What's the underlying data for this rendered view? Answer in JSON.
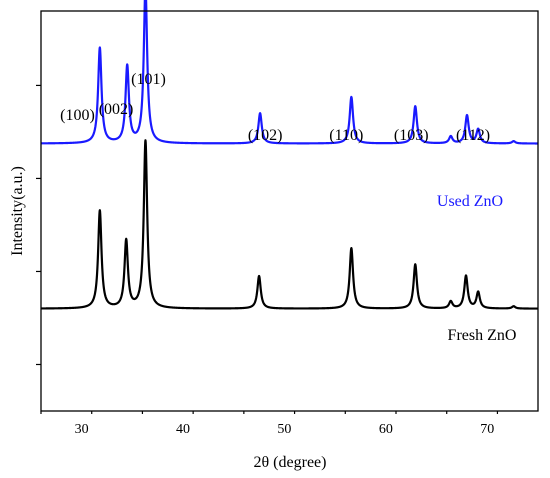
{
  "chart_data": {
    "type": "line",
    "title": "",
    "xlabel": "2θ (degree)",
    "ylabel": "Intensity(a.u.)",
    "xlim": [
      26,
      75
    ],
    "ylim": [
      0,
      1.72
    ],
    "xticks": [
      30,
      40,
      50,
      60,
      70
    ],
    "y_ticks_labeled": false,
    "grid": false,
    "legend": "none",
    "series": [
      {
        "name": "Used ZnO",
        "color": "#1a1aff",
        "baseline": 1.15,
        "peaks": [
          {
            "x": 31.8,
            "height": 0.41
          },
          {
            "x": 34.5,
            "height": 0.33
          },
          {
            "x": 36.3,
            "height": 0.67
          },
          {
            "x": 47.6,
            "height": 0.13
          },
          {
            "x": 56.6,
            "height": 0.2
          },
          {
            "x": 62.9,
            "height": 0.16
          },
          {
            "x": 66.4,
            "height": 0.03
          },
          {
            "x": 68.0,
            "height": 0.12
          },
          {
            "x": 69.1,
            "height": 0.06
          },
          {
            "x": 72.6,
            "height": 0.01
          }
        ]
      },
      {
        "name": "Fresh ZnO",
        "color": "#000000",
        "baseline": 0.44,
        "peaks": [
          {
            "x": 31.8,
            "height": 0.42
          },
          {
            "x": 34.4,
            "height": 0.29
          },
          {
            "x": 36.3,
            "height": 0.72
          },
          {
            "x": 47.5,
            "height": 0.14
          },
          {
            "x": 56.6,
            "height": 0.26
          },
          {
            "x": 62.9,
            "height": 0.19
          },
          {
            "x": 66.4,
            "height": 0.03
          },
          {
            "x": 67.9,
            "height": 0.14
          },
          {
            "x": 69.1,
            "height": 0.07
          },
          {
            "x": 72.6,
            "height": 0.01
          }
        ]
      }
    ],
    "annotations": [
      {
        "text": "(100)",
        "x": 29.6,
        "y": 1.72
      },
      {
        "text": "(002)",
        "x": 33.4,
        "y": 1.72
      },
      {
        "text": "(101)",
        "x": 36.6,
        "y": 1.72
      },
      {
        "text": "(102)",
        "x": 48.1,
        "y": 1.72
      },
      {
        "text": "(110)",
        "x": 56.1,
        "y": 1.72
      },
      {
        "text": "(103)",
        "x": 62.5,
        "y": 1.72
      },
      {
        "text": "(112)",
        "x": 68.6,
        "y": 1.72
      }
    ]
  }
}
